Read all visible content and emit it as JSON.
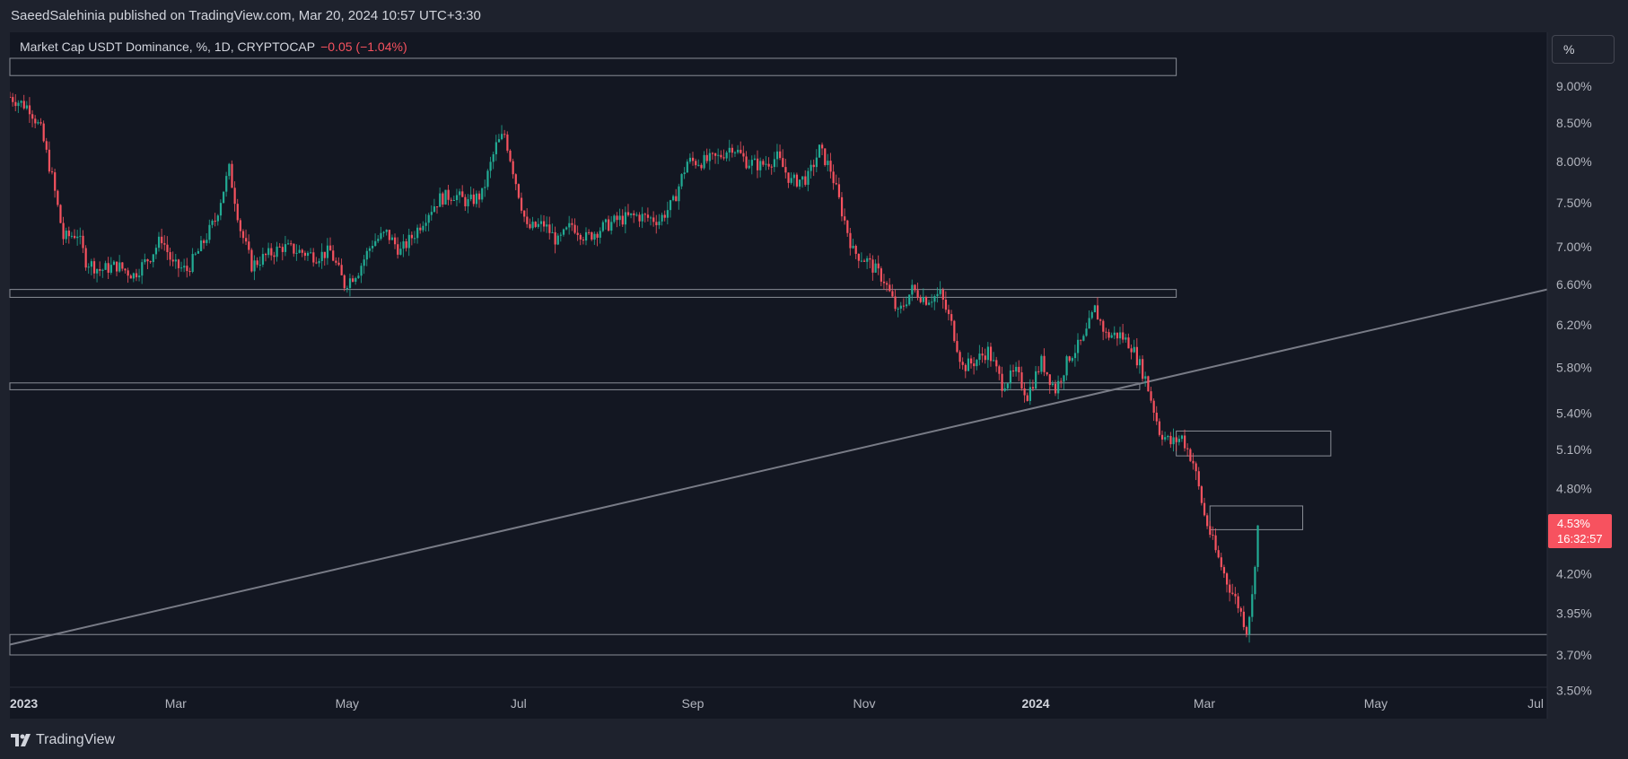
{
  "header": {
    "published": "SaeedSalehinia published on TradingView.com, Mar 20, 2024 10:57 UTC+3:30"
  },
  "legend": {
    "symbol": "Market Cap USDT Dominance, %, 1D, CRYPTOCAP",
    "change": "−0.05 (−1.04%)"
  },
  "scale_button": {
    "label": "%"
  },
  "price_tag": {
    "value": "4.53%",
    "countdown": "16:32:57"
  },
  "footer": {
    "brand": "TradingView"
  },
  "colors": {
    "up": "#22ab94",
    "down": "#f7525f",
    "background": "#131722",
    "frame": "#1e222d",
    "trendline": "#787b86",
    "zones": "#b2b5be"
  },
  "chart_data": {
    "type": "candlestick",
    "title": "Market Cap USDT Dominance, %, 1D, CRYPTOCAP",
    "y_scale": "log",
    "y_ticks": [
      "9.00%",
      "8.50%",
      "8.00%",
      "7.50%",
      "7.00%",
      "6.60%",
      "6.20%",
      "5.80%",
      "5.40%",
      "5.10%",
      "4.80%",
      "4.20%",
      "3.95%",
      "3.70%",
      "3.50%"
    ],
    "y_tick_values": [
      9.0,
      8.5,
      8.0,
      7.5,
      7.0,
      6.6,
      6.2,
      5.8,
      5.4,
      5.1,
      4.8,
      4.2,
      3.95,
      3.7,
      3.5
    ],
    "ylim": [
      3.5,
      9.5
    ],
    "x_ticks": [
      {
        "label": "2023",
        "date": "2023-01-01",
        "bold": true
      },
      {
        "label": "Mar",
        "date": "2023-03-01",
        "bold": false
      },
      {
        "label": "May",
        "date": "2023-05-01",
        "bold": false
      },
      {
        "label": "Jul",
        "date": "2023-07-01",
        "bold": false
      },
      {
        "label": "Sep",
        "date": "2023-09-01",
        "bold": false
      },
      {
        "label": "Nov",
        "date": "2023-11-01",
        "bold": false
      },
      {
        "label": "2024",
        "date": "2024-01-01",
        "bold": true
      },
      {
        "label": "Mar",
        "date": "2024-03-01",
        "bold": false
      },
      {
        "label": "May",
        "date": "2024-05-01",
        "bold": false
      },
      {
        "label": "Jul",
        "date": "2024-07-01",
        "bold": false
      }
    ],
    "xlim": [
      "2023-01-01",
      "2024-07-01"
    ],
    "last_price": 4.53,
    "close_path": [
      [
        "2023-01-01",
        8.85
      ],
      [
        "2023-01-08",
        8.7
      ],
      [
        "2023-01-12",
        8.4
      ],
      [
        "2023-01-16",
        7.8
      ],
      [
        "2023-01-20",
        7.1
      ],
      [
        "2023-01-25",
        7.15
      ],
      [
        "2023-01-28",
        6.85
      ],
      [
        "2023-02-02",
        6.75
      ],
      [
        "2023-02-08",
        6.8
      ],
      [
        "2023-02-14",
        6.7
      ],
      [
        "2023-02-20",
        6.9
      ],
      [
        "2023-02-24",
        7.1
      ],
      [
        "2023-02-28",
        6.8
      ],
      [
        "2023-03-05",
        6.75
      ],
      [
        "2023-03-10",
        7.0
      ],
      [
        "2023-03-15",
        7.3
      ],
      [
        "2023-03-20",
        7.9
      ],
      [
        "2023-03-24",
        7.2
      ],
      [
        "2023-03-28",
        6.8
      ],
      [
        "2023-04-02",
        6.9
      ],
      [
        "2023-04-08",
        7.0
      ],
      [
        "2023-04-14",
        6.95
      ],
      [
        "2023-04-20",
        6.9
      ],
      [
        "2023-04-25",
        6.95
      ],
      [
        "2023-04-30",
        6.6
      ],
      [
        "2023-05-05",
        6.75
      ],
      [
        "2023-05-10",
        7.05
      ],
      [
        "2023-05-15",
        7.15
      ],
      [
        "2023-05-20",
        6.95
      ],
      [
        "2023-05-25",
        7.15
      ],
      [
        "2023-05-30",
        7.4
      ],
      [
        "2023-06-03",
        7.55
      ],
      [
        "2023-06-08",
        7.6
      ],
      [
        "2023-06-13",
        7.5
      ],
      [
        "2023-06-18",
        7.6
      ],
      [
        "2023-06-23",
        8.2
      ],
      [
        "2023-06-26",
        8.35
      ],
      [
        "2023-06-30",
        7.75
      ],
      [
        "2023-07-04",
        7.2
      ],
      [
        "2023-07-10",
        7.25
      ],
      [
        "2023-07-15",
        7.05
      ],
      [
        "2023-07-20",
        7.25
      ],
      [
        "2023-07-25",
        7.1
      ],
      [
        "2023-07-30",
        7.2
      ],
      [
        "2023-08-05",
        7.3
      ],
      [
        "2023-08-12",
        7.35
      ],
      [
        "2023-08-20",
        7.3
      ],
      [
        "2023-08-25",
        7.5
      ],
      [
        "2023-08-30",
        8.0
      ],
      [
        "2023-09-05",
        8.0
      ],
      [
        "2023-09-10",
        8.05
      ],
      [
        "2023-09-15",
        8.2
      ],
      [
        "2023-09-20",
        8.0
      ],
      [
        "2023-09-25",
        7.95
      ],
      [
        "2023-10-01",
        8.05
      ],
      [
        "2023-10-06",
        7.75
      ],
      [
        "2023-10-12",
        7.8
      ],
      [
        "2023-10-16",
        8.15
      ],
      [
        "2023-10-20",
        7.9
      ],
      [
        "2023-10-24",
        7.4
      ],
      [
        "2023-10-28",
        6.95
      ],
      [
        "2023-11-02",
        6.85
      ],
      [
        "2023-11-08",
        6.65
      ],
      [
        "2023-11-13",
        6.3
      ],
      [
        "2023-11-18",
        6.55
      ],
      [
        "2023-11-23",
        6.45
      ],
      [
        "2023-11-28",
        6.5
      ],
      [
        "2023-12-02",
        6.2
      ],
      [
        "2023-12-06",
        5.8
      ],
      [
        "2023-12-10",
        5.85
      ],
      [
        "2023-12-15",
        5.95
      ],
      [
        "2023-12-20",
        5.65
      ],
      [
        "2023-12-25",
        5.75
      ],
      [
        "2023-12-29",
        5.55
      ],
      [
        "2024-01-03",
        5.85
      ],
      [
        "2024-01-08",
        5.6
      ],
      [
        "2024-01-13",
        5.9
      ],
      [
        "2024-01-18",
        6.05
      ],
      [
        "2024-01-22",
        6.35
      ],
      [
        "2024-01-26",
        6.1
      ],
      [
        "2024-01-31",
        6.1
      ],
      [
        "2024-02-04",
        6.0
      ],
      [
        "2024-02-09",
        5.7
      ],
      [
        "2024-02-14",
        5.25
      ],
      [
        "2024-02-18",
        5.15
      ],
      [
        "2024-02-22",
        5.2
      ],
      [
        "2024-02-26",
        5.0
      ],
      [
        "2024-03-01",
        4.6
      ],
      [
        "2024-03-05",
        4.35
      ],
      [
        "2024-03-09",
        4.15
      ],
      [
        "2024-03-13",
        4.0
      ],
      [
        "2024-03-16",
        3.85
      ],
      [
        "2024-03-18",
        4.05
      ],
      [
        "2024-03-20",
        4.53
      ]
    ],
    "trendline": {
      "start": [
        "2023-01-01",
        3.76
      ],
      "end": [
        "2024-07-01",
        6.55
      ]
    },
    "zones": [
      {
        "from": "2023-01-01",
        "to": "2024-02-20",
        "low": 9.15,
        "high": 9.4
      },
      {
        "from": "2023-01-01",
        "to": "2024-02-20",
        "low": 6.47,
        "high": 6.55
      },
      {
        "from": "2023-01-01",
        "to": "2024-02-07",
        "low": 5.6,
        "high": 5.66
      },
      {
        "from": "2024-02-20",
        "to": "2024-04-15",
        "low": 5.05,
        "high": 5.25
      },
      {
        "from": "2024-03-03",
        "to": "2024-04-05",
        "low": 4.5,
        "high": 4.67
      },
      {
        "from": "2023-01-01",
        "to": "2024-07-01",
        "low": 3.7,
        "high": 3.82
      }
    ]
  }
}
